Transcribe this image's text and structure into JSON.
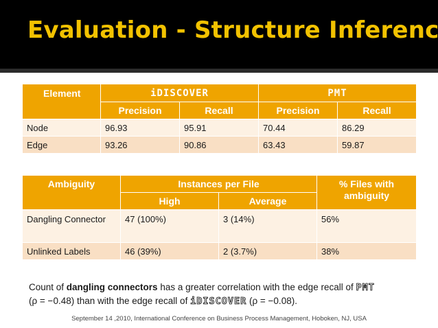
{
  "slide": {
    "title": "Evaluation - Structure Inference",
    "footer": "September 14 ,2010, International Conference on Business Process Management, Hoboken, NJ, USA"
  },
  "table1": {
    "element_header": "Element",
    "tool1": "iDISCOVER",
    "tool2": "PMT",
    "subheaders": [
      "Precision",
      "Recall",
      "Precision",
      "Recall"
    ],
    "rows": [
      {
        "element": "Node",
        "values": [
          "96.93",
          "95.91",
          "70.44",
          "86.29"
        ]
      },
      {
        "element": "Edge",
        "values": [
          "93.26",
          "90.86",
          "63.43",
          "59.87"
        ]
      }
    ]
  },
  "table2": {
    "ambiguity_header": "Ambiguity",
    "instances_header": "Instances per File",
    "files_header": "% Files with ambiguity",
    "subheaders": [
      "High",
      "Average"
    ],
    "rows": [
      {
        "ambiguity": "Dangling Connector",
        "high": "47 (100%)",
        "average": "3 (14%)",
        "files": "56%"
      },
      {
        "ambiguity": "Unlinked Labels",
        "high": "46 (39%)",
        "average": "2 (3.7%)",
        "files": "38%"
      }
    ]
  },
  "note": {
    "p1": "Count of ",
    "bold": "dangling connectors",
    "p2": " has a greater correlation with the edge recall of ",
    "tool_a": "PMT",
    "p3": " (ρ = −0.48) than with the edge recall of ",
    "tool_b": "iDISCOVER",
    "p4": " (ρ = −0.08)."
  }
}
